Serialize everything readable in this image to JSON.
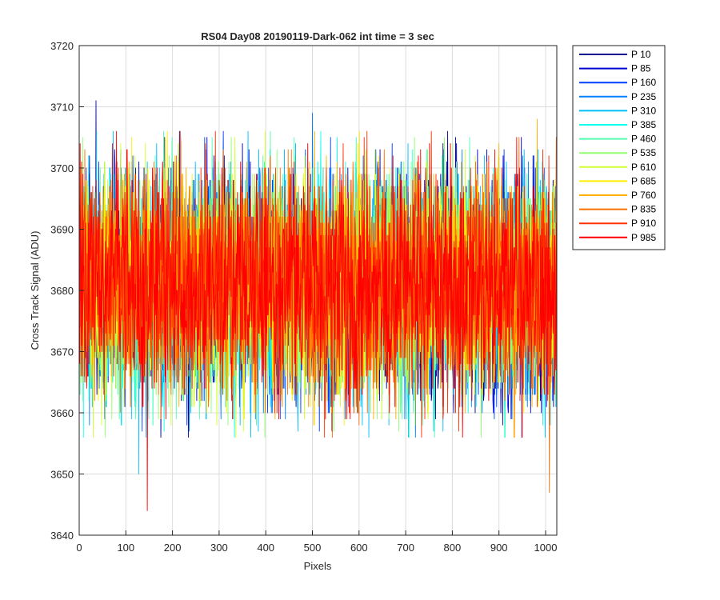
{
  "chart_data": {
    "type": "line",
    "title": "RS04 Day08 20190119-Dark-062 int time = 3 sec",
    "xlabel": "Pixels",
    "ylabel": "Cross Track Signal (ADU)",
    "xlim": [
      0,
      1024
    ],
    "ylim": [
      3640,
      3720
    ],
    "xticks": [
      "0",
      "100",
      "200",
      "300",
      "400",
      "500",
      "600",
      "700",
      "800",
      "900",
      "1000"
    ],
    "yticks": [
      "3640",
      "3650",
      "3660",
      "3670",
      "3680",
      "3690",
      "3700",
      "3710",
      "3720"
    ],
    "grid": true,
    "legend_position": "outside-top-right",
    "noise": {
      "mean": 3681,
      "typical_min": 3660,
      "typical_max": 3702
    },
    "extremes": [
      {
        "series": "P 85",
        "x": 36,
        "y": 3711
      },
      {
        "series": "P 310",
        "x": 128,
        "y": 3650
      },
      {
        "series": "P 985",
        "x": 146,
        "y": 3644
      },
      {
        "series": "P 835",
        "x": 1008,
        "y": 3647
      },
      {
        "series": "P 235",
        "x": 500,
        "y": 3709
      },
      {
        "series": "P 760",
        "x": 982,
        "y": 3708
      }
    ],
    "series": [
      {
        "name": "P 10",
        "color": "#00008f"
      },
      {
        "name": "P 85",
        "color": "#0000d0"
      },
      {
        "name": "P 160",
        "color": "#0040ff"
      },
      {
        "name": "P 235",
        "color": "#0080ff"
      },
      {
        "name": "P 310",
        "color": "#00bfff"
      },
      {
        "name": "P 385",
        "color": "#10ffef"
      },
      {
        "name": "P 460",
        "color": "#50ffaf"
      },
      {
        "name": "P 535",
        "color": "#8fff70"
      },
      {
        "name": "P 610",
        "color": "#cfff30"
      },
      {
        "name": "P 685",
        "color": "#ffef00"
      },
      {
        "name": "P 760",
        "color": "#ffb000"
      },
      {
        "name": "P 835",
        "color": "#ff7000"
      },
      {
        "name": "P 910",
        "color": "#ff3000"
      },
      {
        "name": "P 985",
        "color": "#ff0000"
      }
    ]
  }
}
